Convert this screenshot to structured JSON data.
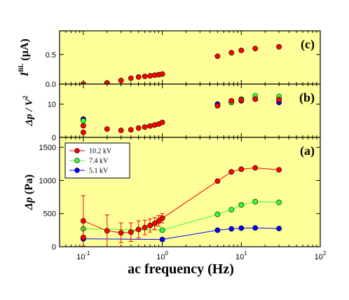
{
  "colors": {
    "background": "#ffff99",
    "series_10kv": "#ff0000",
    "series_7kv": "#33ff33",
    "series_5kv": "#0000ff"
  },
  "chart_data": {
    "type": "scatter",
    "xlabel": "ac frequency (Hz)",
    "xscale": "log",
    "xlim": [
      0.05,
      100
    ],
    "xticks": [
      {
        "value": 0.1,
        "base": "10",
        "exp": "-1"
      },
      {
        "value": 1,
        "base": "10",
        "exp": "0"
      },
      {
        "value": 10,
        "base": "10",
        "exp": "1"
      },
      {
        "value": 100,
        "base": "10",
        "exp": "2"
      }
    ],
    "panels": [
      {
        "id": "c",
        "tag": "(c)",
        "ylabel_main": "I",
        "ylabel_sup": "BL",
        "ylabel_unit": " (µA)",
        "ylim": [
          0,
          0.9
        ],
        "yticks": [
          {
            "value": 0,
            "label": "0.0"
          },
          {
            "value": 0.5,
            "label": "0.5"
          }
        ],
        "series": [
          {
            "color": "#ff0000",
            "line": false,
            "x": [
              0.1,
              0.2,
              0.3,
              0.4,
              0.5,
              0.6,
              0.7,
              0.8,
              0.9,
              1.0,
              5,
              7.5,
              10,
              15,
              30
            ],
            "y": [
              0.0,
              0.02,
              0.06,
              0.1,
              0.12,
              0.13,
              0.14,
              0.15,
              0.16,
              0.17,
              0.47,
              0.53,
              0.57,
              0.6,
              0.63
            ]
          }
        ]
      },
      {
        "id": "b",
        "tag": "(b)",
        "ylabel_main": "Δp / V",
        "ylabel_sup": "2",
        "ylabel_unit": "",
        "ylim": [
          0,
          16
        ],
        "yticks": [
          {
            "value": 0,
            "label": "0"
          },
          {
            "value": 10,
            "label": "10"
          }
        ],
        "series": [
          {
            "color": "#0000ff",
            "line": false,
            "x": [
              0.1,
              5,
              7.5,
              10,
              15,
              30
            ],
            "y": [
              5.5,
              10,
              10.5,
              11,
              11.5,
              10.5
            ]
          },
          {
            "color": "#33ff33",
            "line": false,
            "x": [
              0.1,
              5,
              7.5,
              10,
              15,
              30
            ],
            "y": [
              5,
              9.5,
              10.5,
              11.5,
              12.5,
              12.3
            ]
          },
          {
            "color": "#ff0000",
            "line": false,
            "x": [
              0.1,
              0.1,
              0.2,
              0.3,
              0.4,
              0.5,
              0.6,
              0.7,
              0.8,
              0.9,
              1.0,
              5,
              7.5,
              10,
              15,
              30
            ],
            "y": [
              3.5,
              1.5,
              2.5,
              2.1,
              2.3,
              2.8,
              3.1,
              3.4,
              3.7,
              4.0,
              4.5,
              9.5,
              11,
              11.2,
              11.5,
              11.3
            ]
          }
        ]
      },
      {
        "id": "a",
        "tag": "(a)",
        "ylabel_main": "Δp",
        "ylabel_sup": "",
        "ylabel_unit": " (Pa)",
        "ylim": [
          0,
          1650
        ],
        "yticks": [
          {
            "value": 0,
            "label": "0"
          },
          {
            "value": 500,
            "label": "500"
          },
          {
            "value": 1000,
            "label": "1000"
          },
          {
            "value": 1500,
            "label": "1500"
          }
        ],
        "series": [
          {
            "name": "5.1 kV",
            "color": "#0000ff",
            "line": true,
            "x": [
              0.1,
              1.0,
              5,
              7.5,
              10,
              15,
              30
            ],
            "y": [
              120,
              110,
              250,
              270,
              280,
              285,
              275
            ]
          },
          {
            "name": "7.4 kV",
            "color": "#33ff33",
            "line": true,
            "x": [
              0.1,
              1.0,
              5,
              7.5,
              10,
              15,
              30
            ],
            "y": [
              270,
              250,
              490,
              560,
              630,
              680,
              670
            ]
          },
          {
            "name": "10.2 kV",
            "color": "#ff0000",
            "line": true,
            "x": [
              0.1,
              0.1,
              0.2,
              0.3,
              0.4,
              0.5,
              0.6,
              0.7,
              0.8,
              0.9,
              1.0,
              5,
              7.5,
              10,
              15,
              30
            ],
            "y": [
              390,
              140,
              240,
              210,
              220,
              260,
              290,
              320,
              350,
              390,
              430,
              990,
              1130,
              1170,
              1190,
              1160
            ],
            "err": [
              380,
              0,
              240,
              150,
              140,
              130,
              110,
              100,
              90,
              80,
              70,
              0,
              0,
              0,
              0,
              0
            ]
          }
        ],
        "legend": {
          "placement": "top-left",
          "entries": [
            {
              "label": "10.2 kV",
              "color": "#ff0000"
            },
            {
              "label": "7.4 kV",
              "color": "#33ff33"
            },
            {
              "label": "5.1 kV",
              "color": "#0000ff"
            }
          ]
        }
      }
    ]
  }
}
